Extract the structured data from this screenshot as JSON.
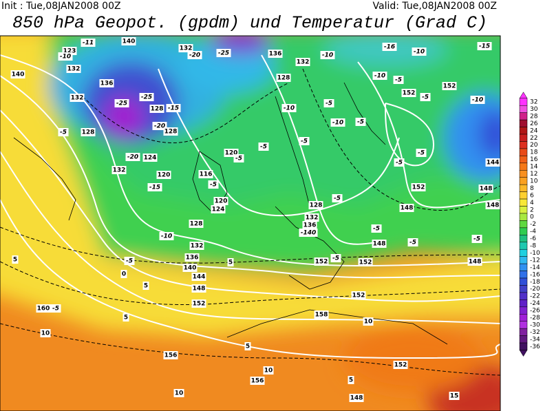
{
  "header": {
    "init": "Init : Tue,08JAN2008 00Z",
    "valid": "Valid: Tue,08JAN2008 00Z",
    "title": "850 hPa Geopot. (gpdm) und Temperatur (Grad C)"
  },
  "colorbar": {
    "levels": [
      32,
      30,
      28,
      26,
      24,
      22,
      20,
      18,
      16,
      14,
      12,
      10,
      8,
      6,
      4,
      2,
      0,
      -2,
      -4,
      -6,
      -8,
      -10,
      -12,
      -14,
      -16,
      -18,
      -20,
      -22,
      -24,
      -26,
      -28,
      -30,
      -32,
      -34,
      -36
    ],
    "colors": [
      "#ff33ff",
      "#f050e0",
      "#d0208a",
      "#a01030",
      "#b01818",
      "#c82020",
      "#dd3020",
      "#e84a18",
      "#f06018",
      "#f57818",
      "#f89020",
      "#faa020",
      "#fcb828",
      "#fdd030",
      "#f8e838",
      "#d8f040",
      "#a8e840",
      "#60d840",
      "#30cc50",
      "#20c080",
      "#20c8b0",
      "#20d0e0",
      "#30b8f0",
      "#3090f0",
      "#3070e8",
      "#3050d8",
      "#4040c8",
      "#5030c8",
      "#6020c8",
      "#8020d0",
      "#a020d8",
      "#b030e0",
      "#8020a0",
      "#601880",
      "#401060"
    ]
  },
  "map_labels": [
    "132",
    "-25",
    "-20",
    "-11",
    "140",
    "123",
    "-10",
    "132",
    "140",
    "136",
    "132",
    "-25",
    "-25",
    "128",
    "-15",
    "-20",
    "128",
    "-5",
    "128",
    "124",
    "-20",
    "132",
    "120",
    "-15",
    "116",
    "-5",
    "120",
    "-5",
    "120",
    "124",
    "128",
    "-10",
    "132",
    "-5",
    "136",
    "140",
    "144",
    "148",
    "152",
    "0",
    "5",
    "5",
    "5",
    "160",
    "-5",
    "10",
    "156",
    "10",
    "156",
    "10",
    "5",
    "158",
    "10",
    "152",
    "152",
    "148",
    "5",
    "15",
    "5",
    "128",
    "132",
    "136",
    "-10",
    "-16",
    "-10",
    "-15",
    "-10",
    "-5",
    "152",
    "-5",
    "152",
    "-10",
    "-10",
    "-5",
    "-10",
    "-5",
    "-5",
    "-5",
    "-5",
    "-5",
    "144",
    "152",
    "148",
    "148",
    "148",
    "-5",
    "128",
    "132",
    "136",
    "-140",
    "-5",
    "-5",
    "148",
    "-5",
    "152",
    "-5",
    "152",
    "148"
  ]
}
